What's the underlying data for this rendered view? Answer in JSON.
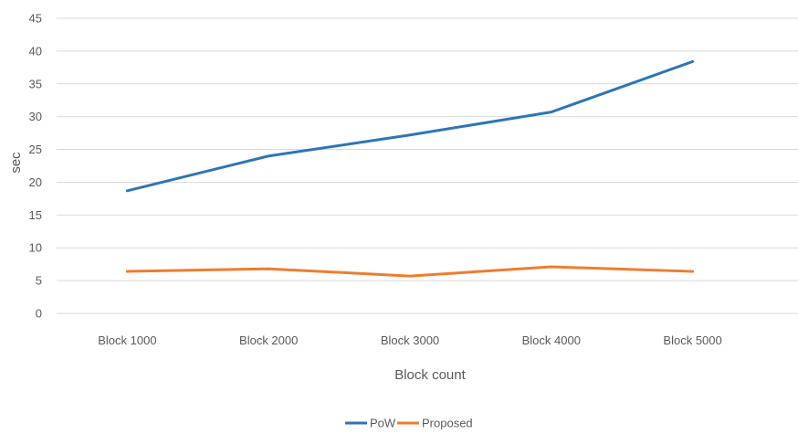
{
  "chart_data": {
    "type": "line",
    "categories": [
      "Block 1000",
      "Block 2000",
      "Block 3000",
      "Block 4000",
      "Block 5000"
    ],
    "series": [
      {
        "name": "PoW",
        "values": [
          18.7,
          24.0,
          27.2,
          30.7,
          38.4
        ],
        "color": "#2e75b6"
      },
      {
        "name": "Proposed",
        "values": [
          6.4,
          6.8,
          5.7,
          7.1,
          6.4
        ],
        "color": "#ed7d31"
      }
    ],
    "title": "",
    "xlabel": "Block count",
    "ylabel": "sec",
    "ylim": [
      0,
      45
    ],
    "yticks": [
      0,
      5,
      10,
      15,
      20,
      25,
      30,
      35,
      40,
      45
    ],
    "grid": true,
    "legend_position": "bottom"
  }
}
